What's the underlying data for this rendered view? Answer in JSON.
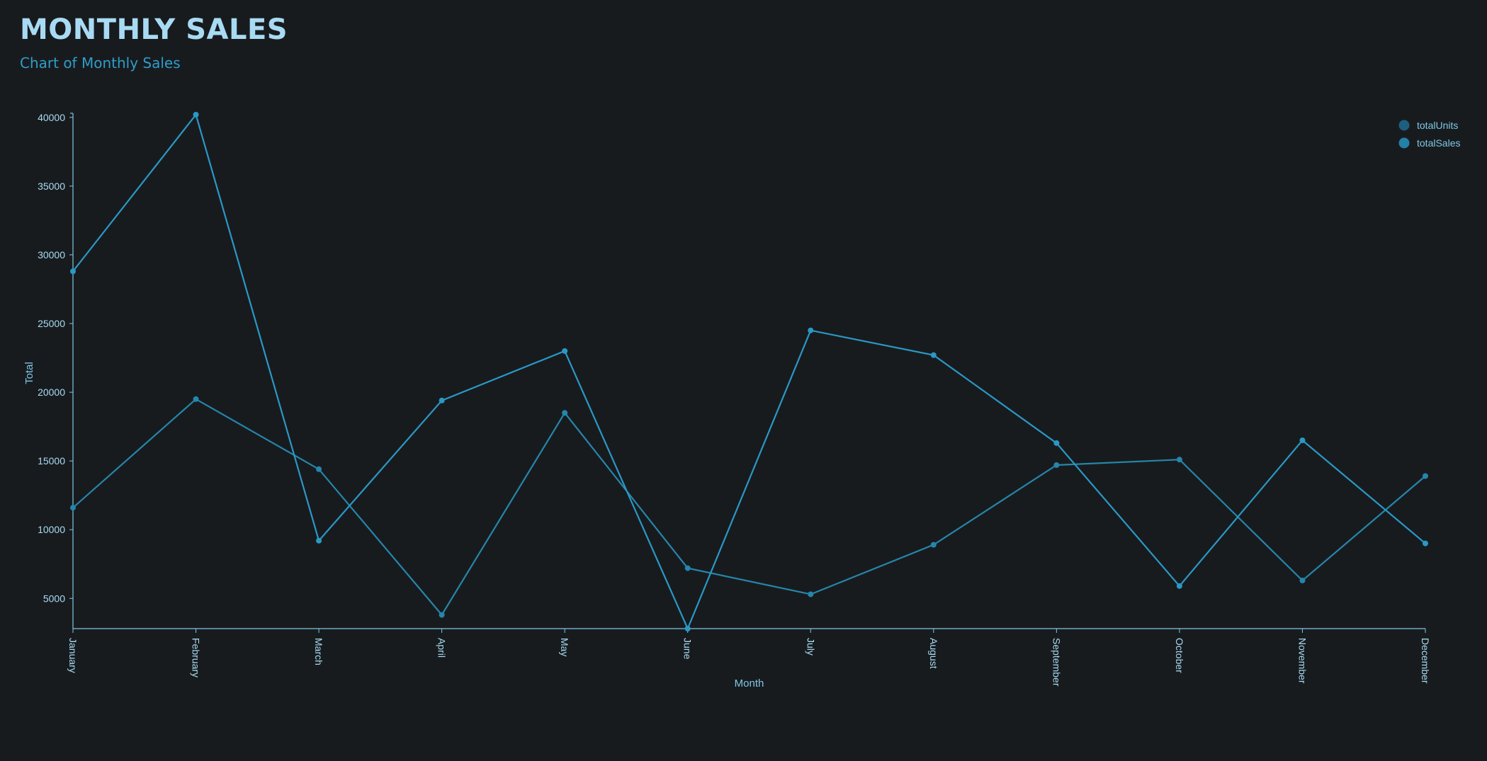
{
  "header": {
    "title": "MONTHLY SALES",
    "subtitle": "Chart of Monthly Sales"
  },
  "colors": {
    "background": "#181b1e",
    "title": "#a8dbf3",
    "subtitle": "#2f9dca",
    "axis": "#7fc7e6",
    "tick_label": "#a8dbf3"
  },
  "chart_data": {
    "type": "line",
    "title": "",
    "xlabel": "Month",
    "ylabel": "Total",
    "categories": [
      "January",
      "February",
      "March",
      "April",
      "May",
      "June",
      "July",
      "August",
      "September",
      "October",
      "November",
      "December"
    ],
    "ylim": [
      2800,
      40300
    ],
    "yticks": [
      5000,
      10000,
      15000,
      20000,
      25000,
      30000,
      35000,
      40000
    ],
    "grid": false,
    "legend_position": "top-right",
    "series": [
      {
        "name": "totalUnits",
        "color": "#2586ab",
        "legend_color": "#1e5f80",
        "values": [
          11600,
          19500,
          14400,
          3800,
          18500,
          7200,
          5300,
          8900,
          14700,
          15100,
          6300,
          13900
        ]
      },
      {
        "name": "totalSales",
        "color": "#2a98c6",
        "legend_color": "#2380a8",
        "values": [
          28800,
          40200,
          9200,
          19400,
          23000,
          2800,
          24500,
          22700,
          16300,
          5900,
          16500,
          9000
        ]
      }
    ]
  }
}
